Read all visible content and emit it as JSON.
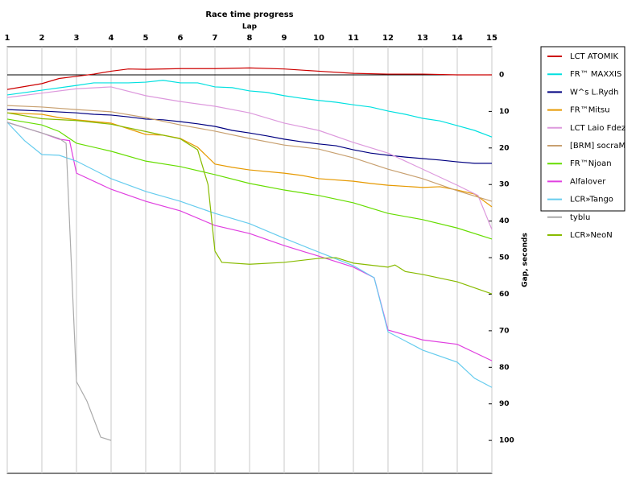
{
  "chart_data": {
    "type": "line",
    "title": "Race time progress",
    "x_label": "Lap",
    "y_label": "Gap, seconds",
    "xlim": [
      1,
      15
    ],
    "xticks": [
      1,
      2,
      3,
      4,
      5,
      6,
      7,
      8,
      9,
      10,
      11,
      12,
      13,
      14,
      15
    ],
    "ylim": [
      -7.7,
      109
    ],
    "yticks": [
      0,
      10,
      20,
      30,
      40,
      50,
      60,
      70,
      80,
      90,
      100
    ],
    "y_inverted": true,
    "grid": "x",
    "zero_line": true,
    "legend": "right",
    "series": [
      {
        "name": "LCT ATOMIK",
        "color": "#cc0000",
        "x": [
          1,
          1.5,
          2,
          2.5,
          3,
          3.5,
          4,
          4.5,
          5,
          6,
          7,
          8,
          9,
          10,
          11,
          12,
          13,
          14,
          15
        ],
        "values": [
          4,
          3.2,
          2.4,
          1,
          0.4,
          -0.2,
          -1,
          -1.6,
          -1.5,
          -1.7,
          -1.7,
          -1.9,
          -1.6,
          -1,
          -0.4,
          -0.2,
          -0.2,
          0,
          0
        ]
      },
      {
        "name": "FR™ MAXXIS",
        "color": "#00e0e0",
        "x": [
          1,
          2,
          3,
          3.5,
          4,
          4.5,
          5,
          5.5,
          6,
          6.5,
          7,
          7.5,
          8,
          8.5,
          9,
          9.5,
          10,
          10.5,
          11,
          11.5,
          12,
          12.5,
          13,
          13.5,
          14,
          14.5,
          15
        ],
        "values": [
          5.5,
          4.2,
          2.9,
          2.2,
          2.2,
          2.2,
          2,
          1.5,
          2.2,
          2.2,
          3.3,
          3.5,
          4.4,
          4.8,
          5.7,
          6.4,
          7,
          7.5,
          8.2,
          8.8,
          9.9,
          10.8,
          11.9,
          12.6,
          13.9,
          15.2,
          17
        ]
      },
      {
        "name": "W^s L.Rydh",
        "color": "#000080",
        "x": [
          1,
          2,
          3,
          3.5,
          4,
          4.5,
          5,
          5.5,
          6,
          6.5,
          7,
          7.5,
          8,
          8.5,
          9,
          9.5,
          10,
          10.5,
          11,
          11.5,
          12,
          12.5,
          13,
          13.5,
          14,
          14.5,
          15
        ],
        "values": [
          9.5,
          9.9,
          10.4,
          10.8,
          11,
          11.5,
          12.1,
          12.3,
          12.8,
          13.4,
          14.1,
          15.2,
          15.9,
          16.7,
          17.6,
          18.3,
          18.9,
          19.4,
          20.5,
          21.4,
          22,
          22.5,
          22.9,
          23.3,
          23.8,
          24.2,
          24.2
        ]
      },
      {
        "name": "FR™Mitsu",
        "color": "#e69900",
        "x": [
          1,
          2,
          2.5,
          3,
          4,
          5,
          5.5,
          6,
          6.5,
          7,
          7.5,
          8,
          9,
          9.5,
          10,
          11,
          11.5,
          12,
          13,
          13.5,
          14,
          14.5,
          15
        ],
        "values": [
          10.4,
          10.8,
          11.7,
          12.3,
          13.2,
          16.3,
          16.5,
          17.4,
          19.8,
          24.4,
          25.3,
          26,
          26.9,
          27.5,
          28.4,
          29.1,
          29.7,
          30.2,
          30.8,
          30.6,
          31.5,
          32.6,
          36.1
        ]
      },
      {
        "name": "LCT Laio Fdez",
        "color": "#dd99dd",
        "x": [
          1,
          2,
          3,
          4,
          5,
          6,
          7,
          8,
          9,
          10,
          11,
          12,
          13,
          14,
          14.6,
          15
        ],
        "values": [
          6.2,
          5,
          3.8,
          3.3,
          5.7,
          7.3,
          8.6,
          10.4,
          13.2,
          15.2,
          18.5,
          21.4,
          25.8,
          30.2,
          33,
          42.3
        ]
      },
      {
        "name": "[BRM] socraM",
        "color": "#c8a070",
        "x": [
          1,
          2,
          3,
          4,
          5,
          6,
          7,
          8,
          9,
          10,
          11,
          12,
          13,
          14,
          15
        ],
        "values": [
          8.4,
          8.8,
          9.5,
          10.1,
          11.7,
          13.7,
          15.4,
          17.4,
          19.2,
          20.3,
          22.7,
          25.8,
          28.4,
          31.7,
          34.6
        ]
      },
      {
        "name": "FR™Njoan",
        "color": "#66dd00",
        "x": [
          1,
          2,
          2.5,
          3,
          4,
          5,
          6,
          7,
          8,
          9,
          10,
          11,
          12,
          13,
          14,
          15
        ],
        "values": [
          12.1,
          13.7,
          15.5,
          18.7,
          20.9,
          23.6,
          25.1,
          27.3,
          29.7,
          31.5,
          33,
          35,
          37.9,
          39.6,
          41.9,
          44.9
        ]
      },
      {
        "name": "Alfalover",
        "color": "#e040e0",
        "x": [
          1,
          2,
          2.5,
          2.8,
          3,
          4,
          5,
          6,
          7,
          8,
          9,
          10,
          11,
          11.6,
          12,
          13,
          14,
          15
        ],
        "values": [
          13,
          15.9,
          17.6,
          18,
          26.9,
          31.3,
          34.6,
          37.2,
          41.2,
          43.4,
          46.7,
          49.6,
          52.6,
          55.5,
          69.8,
          72.5,
          73.7,
          78.2
        ]
      },
      {
        "name": "LCR»Tango",
        "color": "#66ccee",
        "x": [
          1,
          1.5,
          2,
          2.5,
          3,
          4,
          5,
          6,
          7,
          8,
          9,
          10,
          11,
          11.6,
          12,
          13,
          14,
          14.5,
          15
        ],
        "values": [
          13,
          18,
          21.8,
          22,
          23.6,
          28.4,
          31.9,
          34.6,
          37.9,
          40.7,
          44.7,
          48.5,
          52.2,
          55.5,
          70.3,
          75.3,
          78.6,
          83,
          85.5
        ]
      },
      {
        "name": "tyblu",
        "color": "#aaaaaa",
        "x": [
          1,
          2,
          2.5,
          2.7,
          3,
          3.3,
          3.7,
          4
        ],
        "values": [
          13,
          15.9,
          17.4,
          18.7,
          83.9,
          89.2,
          99.1,
          100
        ]
      },
      {
        "name": "LCR»NeoN",
        "color": "#88bb00",
        "x": [
          1,
          2,
          3,
          4,
          5,
          6,
          6.5,
          6.8,
          7,
          7.2,
          8,
          9,
          10,
          10.5,
          11,
          12,
          12.2,
          12.5,
          13,
          14,
          15
        ],
        "values": [
          10.4,
          12,
          12.5,
          13.5,
          15.5,
          17.5,
          20.5,
          30,
          48.2,
          51.3,
          51.8,
          51.3,
          50.2,
          50,
          51.5,
          52.6,
          52,
          53.8,
          54.6,
          56.6,
          59.9
        ]
      }
    ]
  }
}
